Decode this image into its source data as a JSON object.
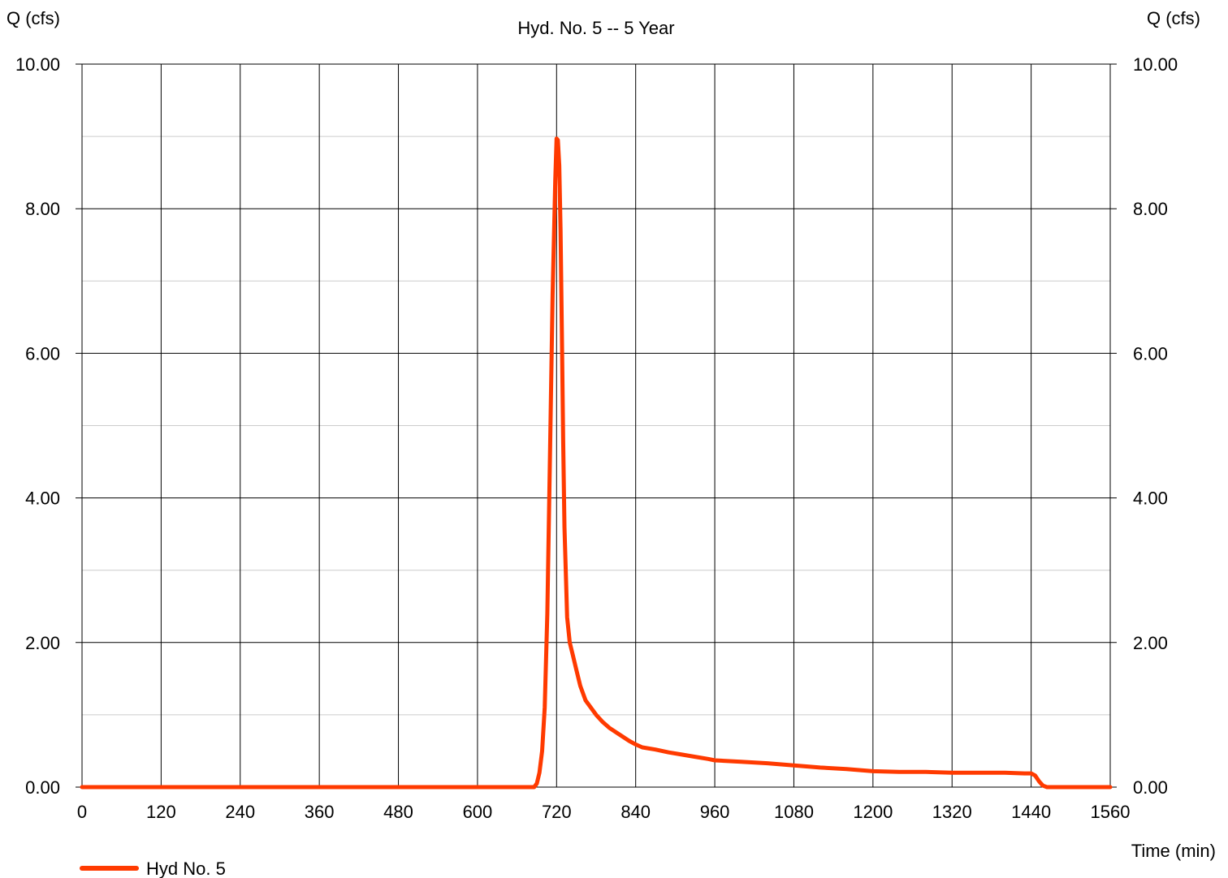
{
  "chart_data": {
    "type": "line",
    "title": "",
    "subtitle": "Hyd. No. 5 -- 5 Year",
    "y_label_left": "Q (cfs)",
    "y_label_right": "Q (cfs)",
    "x_label": "Time (min)",
    "xlim": [
      0,
      1560
    ],
    "ylim": [
      0,
      10
    ],
    "x_ticks": [
      0,
      120,
      240,
      360,
      480,
      600,
      720,
      840,
      960,
      1080,
      1200,
      1320,
      1440,
      1560
    ],
    "x_tick_labels": [
      "0",
      "120",
      "240",
      "360",
      "480",
      "600",
      "720",
      "840",
      "960",
      "1080",
      "1200",
      "1320",
      "1440",
      "1560"
    ],
    "y_ticks": [
      0,
      2,
      4,
      6,
      8,
      10
    ],
    "y_tick_labels": [
      "0.00",
      "2.00",
      "4.00",
      "6.00",
      "8.00",
      "10.00"
    ],
    "y_minor_ticks": [
      1,
      3,
      5,
      7,
      9
    ],
    "grid": true,
    "legend_position": "bottom-left",
    "series": [
      {
        "name": "Hyd No. 5",
        "color": "#ff3a00",
        "x": [
          0,
          600,
          686,
          690,
          694,
          698,
          702,
          706,
          710,
          714,
          718,
          720,
          722,
          724,
          726,
          728,
          730,
          732,
          736,
          740,
          744,
          750,
          756,
          764,
          772,
          780,
          790,
          800,
          815,
          830,
          840,
          850,
          870,
          890,
          910,
          930,
          950,
          960,
          1000,
          1040,
          1080,
          1120,
          1160,
          1200,
          1240,
          1280,
          1320,
          1360,
          1400,
          1430,
          1440,
          1446,
          1452,
          1458,
          1464,
          1560
        ],
        "y": [
          0,
          0,
          0,
          0.05,
          0.2,
          0.5,
          1.1,
          2.4,
          4.6,
          6.8,
          8.4,
          8.97,
          8.95,
          8.6,
          7.7,
          6.3,
          4.8,
          3.6,
          2.35,
          2.0,
          1.85,
          1.62,
          1.4,
          1.2,
          1.1,
          1.0,
          0.9,
          0.82,
          0.73,
          0.64,
          0.59,
          0.55,
          0.52,
          0.48,
          0.45,
          0.42,
          0.39,
          0.37,
          0.35,
          0.33,
          0.3,
          0.27,
          0.25,
          0.22,
          0.21,
          0.21,
          0.2,
          0.2,
          0.2,
          0.19,
          0.19,
          0.16,
          0.08,
          0.02,
          0,
          0
        ]
      }
    ]
  }
}
